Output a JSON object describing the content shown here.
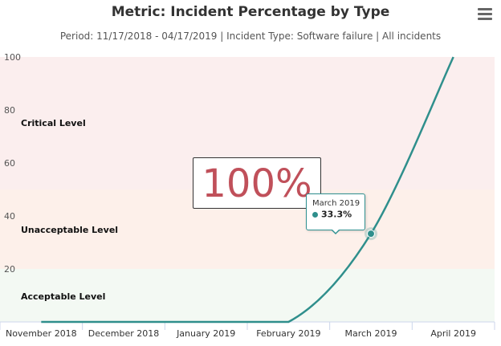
{
  "header": {
    "title": "Metric: Incident Percentage by Type",
    "subtitle": "Period: 11/17/2018 - 04/17/2019 | Incident Type: Software failure | All incidents",
    "menu_icon": "hamburger-menu-icon"
  },
  "big_value": "100%",
  "tooltip": {
    "category": "March 2019",
    "value": "33.3%"
  },
  "colors": {
    "line": "#2f8f8c",
    "critical_band": "#fbeeee",
    "unacceptable_band": "#fdf0ea",
    "acceptable_band": "#f3f9f3",
    "big_value_text": "#c0505a"
  },
  "chart_data": {
    "type": "line",
    "title": "Metric: Incident Percentage by Type",
    "subtitle": "Period: 11/17/2018 - 04/17/2019 | Incident Type: Software failure | All incidents",
    "categories": [
      "November 2018",
      "December 2018",
      "January 2019",
      "February 2019",
      "March 2019",
      "April 2019"
    ],
    "series": [
      {
        "values": [
          0,
          0,
          0,
          0,
          33.3,
          100
        ]
      }
    ],
    "ylim": [
      0,
      100
    ],
    "yticks": [
      20,
      40,
      60,
      80,
      100
    ],
    "bands": [
      {
        "label": "Critical Level",
        "from": 50,
        "to": 100
      },
      {
        "label": "Unacceptable Level",
        "from": 20,
        "to": 50
      },
      {
        "label": "Acceptable Level",
        "from": 0,
        "to": 20
      }
    ],
    "legend": "none",
    "grid": false
  }
}
